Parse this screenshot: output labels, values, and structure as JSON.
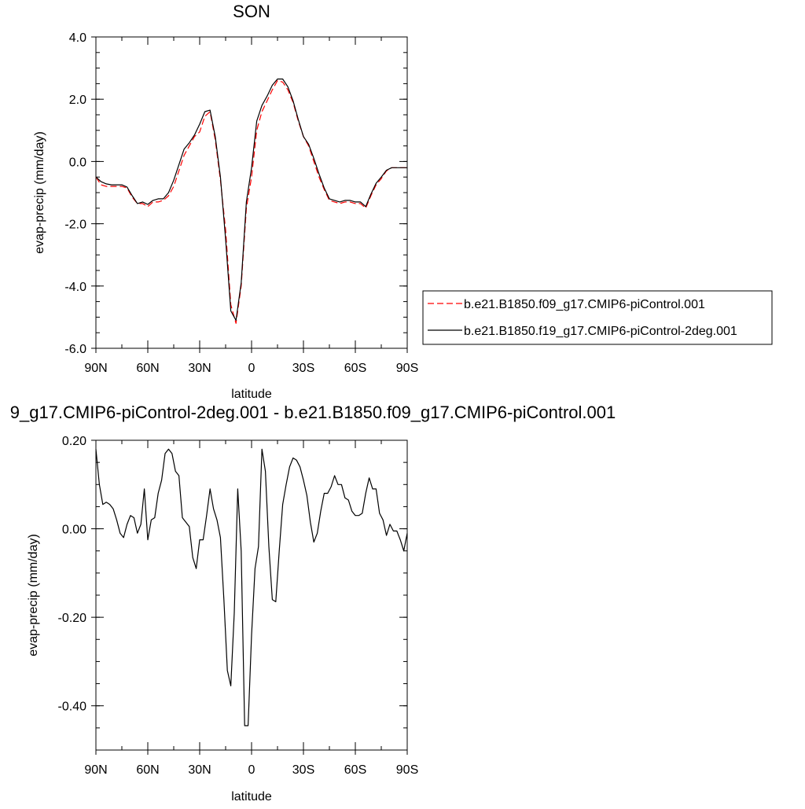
{
  "chart_data": [
    {
      "type": "line",
      "title": "SON",
      "xlabel": "latitude",
      "ylabel": "evap-precip (mm/day)",
      "xlim": [
        90,
        -90
      ],
      "ylim": [
        -6,
        4
      ],
      "x_ticks": [
        90,
        60,
        30,
        0,
        -30,
        -60,
        -90
      ],
      "x_tick_labels": [
        "90N",
        "60N",
        "30N",
        "0",
        "30S",
        "60S",
        "90S"
      ],
      "y_ticks": [
        -6,
        -4,
        -2,
        0,
        2,
        4
      ],
      "y_tick_labels": [
        "-6.0",
        "-4.0",
        "-2.0",
        "0.0",
        "2.0",
        "4.0"
      ],
      "grid": false,
      "legend_position": "right",
      "series": [
        {
          "name": "b.e21.B1850.f09_g17.CMIP6-piControl.001",
          "color": "#ff0000",
          "style": "dashed",
          "x": [
            90,
            87,
            84,
            81,
            78,
            75,
            72,
            69,
            66,
            63,
            60,
            57,
            54,
            51,
            48,
            45,
            42,
            39,
            36,
            33,
            30,
            27,
            24,
            21,
            18,
            15,
            12,
            9,
            6,
            3,
            0,
            -3,
            -6,
            -9,
            -12,
            -15,
            -18,
            -21,
            -24,
            -27,
            -30,
            -33,
            -36,
            -39,
            -42,
            -45,
            -48,
            -51,
            -54,
            -57,
            -60,
            -63,
            -66,
            -69,
            -72,
            -75,
            -78,
            -81,
            -84,
            -87,
            -90
          ],
          "y": [
            -0.5,
            -0.75,
            -0.8,
            -0.8,
            -0.8,
            -0.8,
            -0.85,
            -1.15,
            -1.35,
            -1.35,
            -1.45,
            -1.3,
            -1.3,
            -1.25,
            -1.1,
            -0.8,
            -0.3,
            0.2,
            0.5,
            0.8,
            0.95,
            1.45,
            1.6,
            0.7,
            -0.6,
            -2.2,
            -4.6,
            -5.2,
            -4.0,
            -1.5,
            -0.5,
            1.0,
            1.6,
            1.95,
            2.3,
            2.6,
            2.55,
            2.3,
            1.9,
            1.3,
            0.8,
            0.5,
            0.0,
            -0.5,
            -0.9,
            -1.25,
            -1.3,
            -1.35,
            -1.3,
            -1.3,
            -1.35,
            -1.35,
            -1.5,
            -1.1,
            -0.75,
            -0.55,
            -0.3,
            -0.2,
            -0.2,
            -0.2,
            -0.2
          ]
        },
        {
          "name": "b.e21.B1850.f19_g17.CMIP6-piControl-2deg.001",
          "color": "#000000",
          "style": "solid",
          "x": [
            90,
            87,
            84,
            81,
            78,
            75,
            72,
            69,
            66,
            63,
            60,
            57,
            54,
            51,
            48,
            45,
            42,
            39,
            36,
            33,
            30,
            27,
            24,
            21,
            18,
            15,
            12,
            9,
            6,
            3,
            0,
            -3,
            -6,
            -9,
            -12,
            -15,
            -18,
            -21,
            -24,
            -27,
            -30,
            -33,
            -36,
            -39,
            -42,
            -45,
            -48,
            -51,
            -54,
            -57,
            -60,
            -63,
            -66,
            -69,
            -72,
            -75,
            -78,
            -81,
            -84,
            -87,
            -90
          ],
          "y": [
            -0.5,
            -0.65,
            -0.72,
            -0.75,
            -0.75,
            -0.75,
            -0.82,
            -1.1,
            -1.35,
            -1.3,
            -1.38,
            -1.25,
            -1.2,
            -1.2,
            -1.0,
            -0.6,
            -0.1,
            0.4,
            0.6,
            0.85,
            1.2,
            1.6,
            1.65,
            0.8,
            -0.5,
            -2.5,
            -4.8,
            -5.1,
            -3.9,
            -1.3,
            -0.2,
            1.3,
            1.8,
            2.1,
            2.45,
            2.65,
            2.65,
            2.4,
            1.95,
            1.35,
            0.8,
            0.55,
            0.1,
            -0.4,
            -0.85,
            -1.2,
            -1.25,
            -1.3,
            -1.25,
            -1.25,
            -1.3,
            -1.3,
            -1.45,
            -1.05,
            -0.7,
            -0.5,
            -0.28,
            -0.2,
            -0.2,
            -0.2,
            -0.2
          ]
        }
      ]
    },
    {
      "type": "line",
      "title": "9_g17.CMIP6-piControl-2deg.001 - b.e21.B1850.f09_g17.CMIP6-piControl.001",
      "xlabel": "latitude",
      "ylabel": "evap-precip (mm/day)",
      "xlim": [
        90,
        -90
      ],
      "ylim": [
        -0.5,
        0.2
      ],
      "x_ticks": [
        90,
        60,
        30,
        0,
        -30,
        -60,
        -90
      ],
      "x_tick_labels": [
        "90N",
        "60N",
        "30N",
        "0",
        "30S",
        "60S",
        "90S"
      ],
      "y_ticks": [
        -0.4,
        -0.2,
        0.0,
        0.2
      ],
      "y_tick_labels": [
        "-0.40",
        "-0.20",
        "0.00",
        "0.20"
      ],
      "grid": false,
      "series": [
        {
          "color": "#000000",
          "style": "solid",
          "x": [
            90,
            88,
            86,
            84,
            82,
            80,
            78,
            76,
            74,
            72,
            70,
            68,
            66,
            64,
            62,
            60,
            58,
            56,
            54,
            52,
            50,
            48,
            46,
            44,
            42,
            40,
            38,
            36,
            34,
            32,
            30,
            28,
            26,
            24,
            22,
            20,
            18,
            16,
            14,
            12,
            10,
            8,
            6,
            4,
            2,
            0,
            -2,
            -4,
            -6,
            -8,
            -10,
            -12,
            -14,
            -16,
            -18,
            -20,
            -22,
            -24,
            -26,
            -28,
            -30,
            -32,
            -34,
            -36,
            -38,
            -40,
            -42,
            -44,
            -46,
            -48,
            -50,
            -52,
            -54,
            -56,
            -58,
            -60,
            -62,
            -64,
            -66,
            -68,
            -70,
            -72,
            -74,
            -76,
            -78,
            -80,
            -82,
            -84,
            -86,
            -88,
            -90
          ],
          "y": [
            0.18,
            0.1,
            0.055,
            0.06,
            0.055,
            0.045,
            0.02,
            -0.01,
            -0.02,
            0.01,
            0.03,
            0.025,
            -0.01,
            0.01,
            0.09,
            -0.025,
            0.02,
            0.025,
            0.08,
            0.11,
            0.17,
            0.18,
            0.17,
            0.13,
            0.12,
            0.025,
            0.015,
            0.005,
            -0.065,
            -0.09,
            -0.025,
            -0.025,
            0.03,
            0.09,
            0.045,
            0.02,
            -0.02,
            -0.16,
            -0.32,
            -0.355,
            -0.19,
            0.09,
            -0.05,
            -0.445,
            -0.445,
            -0.24,
            -0.09,
            -0.04,
            0.18,
            0.13,
            -0.04,
            -0.16,
            -0.165,
            -0.05,
            0.055,
            0.1,
            0.14,
            0.16,
            0.155,
            0.14,
            0.11,
            0.075,
            0.015,
            -0.03,
            -0.01,
            0.04,
            0.08,
            0.08,
            0.095,
            0.12,
            0.1,
            0.1,
            0.07,
            0.065,
            0.04,
            0.03,
            0.03,
            0.035,
            0.08,
            0.115,
            0.09,
            0.09,
            0.035,
            0.02,
            -0.015,
            0.01,
            -0.005,
            -0.005,
            -0.025,
            -0.05,
            -0.01
          ]
        }
      ]
    }
  ]
}
